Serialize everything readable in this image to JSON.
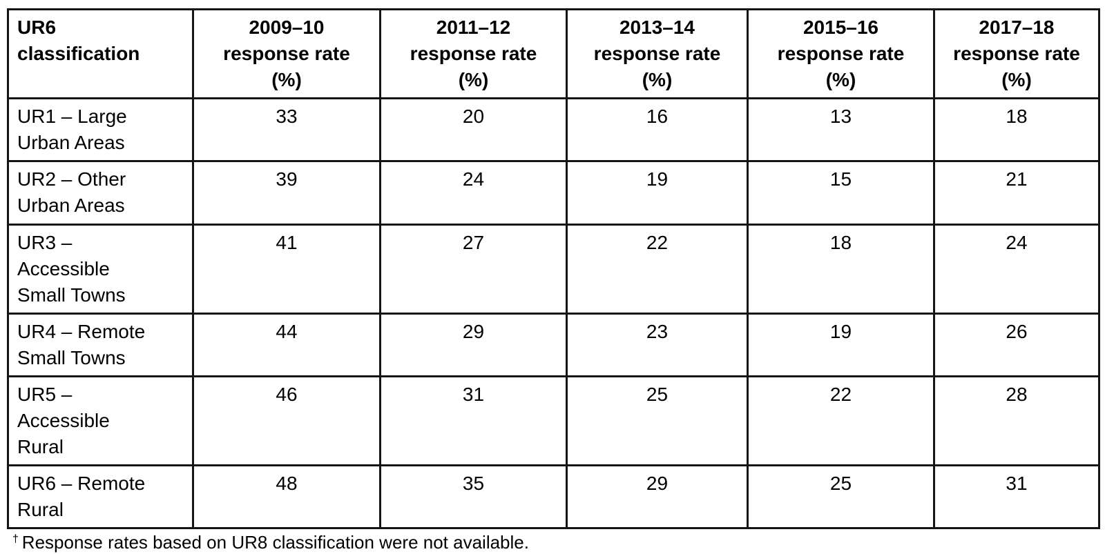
{
  "page": {
    "background": "#ffffff",
    "text_color": "#000000",
    "border_color": "#141414"
  },
  "table": {
    "corner_header": "UR6 classification",
    "corner_header_lines": [
      "UR6",
      "classification"
    ],
    "year_headers": [
      "2009–10",
      "2011–12",
      "2013–14",
      "2015–16",
      "2017–18"
    ],
    "year_header_line2": "response rate",
    "year_header_line3": "(%)",
    "rows": [
      {
        "label": "UR1 – Large Urban Areas",
        "label_lines": [
          "UR1 – Large",
          "Urban Areas"
        ],
        "values": [
          "33",
          "20",
          "16",
          "13",
          "18"
        ]
      },
      {
        "label": "UR2 – Other Urban Areas",
        "label_lines": [
          "UR2 – Other",
          "Urban Areas"
        ],
        "values": [
          "39",
          "24",
          "19",
          "15",
          "21"
        ]
      },
      {
        "label": "UR3 – Accessible Small Towns",
        "label_lines": [
          "UR3 –",
          "Accessible",
          "Small Towns"
        ],
        "values": [
          "41",
          "27",
          "22",
          "18",
          "24"
        ]
      },
      {
        "label": "UR4 – Remote Small Towns",
        "label_lines": [
          "UR4 – Remote",
          "Small Towns"
        ],
        "values": [
          "44",
          "29",
          "23",
          "19",
          "26"
        ]
      },
      {
        "label": "UR5 – Accessible Rural",
        "label_lines": [
          "UR5 –",
          "Accessible",
          "Rural"
        ],
        "values": [
          "46",
          "31",
          "25",
          "22",
          "28"
        ]
      },
      {
        "label": "UR6 – Remote Rural",
        "label_lines": [
          "UR6 – Remote",
          "Rural"
        ],
        "values": [
          "48",
          "35",
          "29",
          "25",
          "31"
        ]
      }
    ],
    "footnote": {
      "marker": "†",
      "text": "Response rates based on UR8 classification were not available."
    }
  },
  "chart_data": {
    "type": "table",
    "columns": [
      "UR6 classification",
      "2009–10 response rate (%)",
      "2011–12 response rate (%)",
      "2013–14 response rate (%)",
      "2015–16 response rate (%)",
      "2017–18 response rate (%)"
    ],
    "rows": [
      [
        "UR1 – Large Urban Areas",
        33,
        20,
        16,
        13,
        18
      ],
      [
        "UR2 – Other Urban Areas",
        39,
        24,
        19,
        15,
        21
      ],
      [
        "UR3 – Accessible Small Towns",
        41,
        27,
        22,
        18,
        24
      ],
      [
        "UR4 – Remote Small Towns",
        44,
        29,
        23,
        19,
        26
      ],
      [
        "UR5 – Accessible Rural",
        46,
        31,
        25,
        22,
        28
      ],
      [
        "UR6 – Remote Rural",
        48,
        35,
        29,
        25,
        31
      ]
    ],
    "footnote": "† Response rates based on UR8 classification were not available."
  }
}
